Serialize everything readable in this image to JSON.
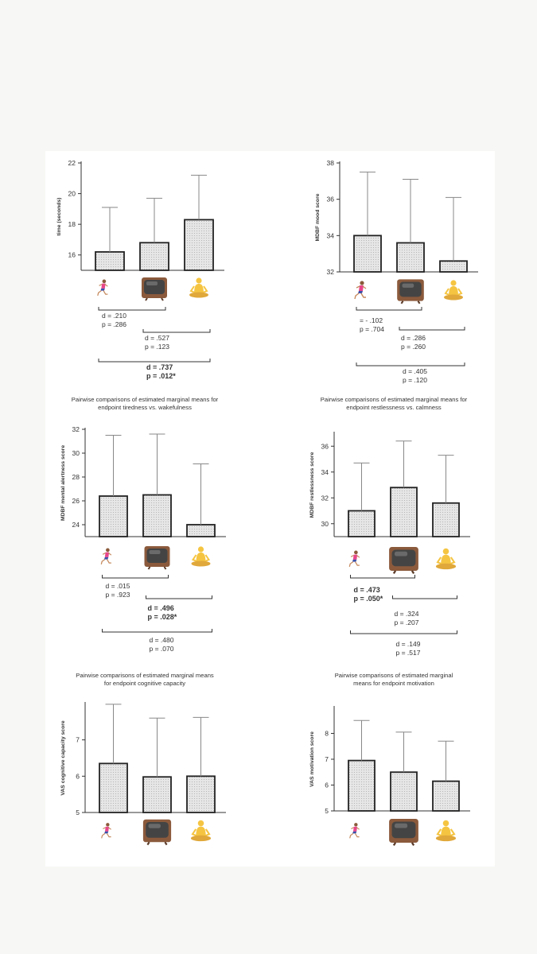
{
  "colors": {
    "page_background": "#f7f7f5",
    "panel_background": "#ffffff",
    "bar_fill": "#e6e6e6",
    "axis": "#333333",
    "error_bar": "#888888",
    "runner_shirt": "#e8458b",
    "runner_shorts": "#3b4fa8",
    "tv_body": "#8b5a3c",
    "tv_screen": "#444444",
    "yoga_body": "#f5c542"
  },
  "icons": [
    "running-person-icon",
    "television-icon",
    "person-in-lotus-position-icon"
  ],
  "chart_data": [
    {
      "id": "time",
      "type": "bar",
      "title": "",
      "ylabel": "time (seconds)",
      "ylim": [
        15,
        22
      ],
      "yticks": [
        16,
        18,
        20,
        22
      ],
      "categories": [
        "running-person-icon",
        "television-icon",
        "person-in-lotus-position-icon"
      ],
      "values": [
        16.2,
        16.8,
        18.3
      ],
      "error_upper": [
        19.1,
        19.7,
        21.2
      ],
      "comparisons": [
        {
          "from": 0,
          "to": 1,
          "d": "d = .210",
          "p": "p = .286",
          "bold": false
        },
        {
          "from": 1,
          "to": 2,
          "d": "d = .527",
          "p": "p = .123",
          "bold": false
        },
        {
          "from": 0,
          "to": 2,
          "d": "d = .737",
          "p": "p = .012*",
          "bold": true
        }
      ]
    },
    {
      "id": "mood",
      "type": "bar",
      "title": "",
      "ylabel": "MDBF mood score",
      "ylim": [
        32,
        38
      ],
      "yticks": [
        32,
        34,
        36,
        38
      ],
      "categories": [
        "running-person-icon",
        "television-icon",
        "person-in-lotus-position-icon"
      ],
      "values": [
        34.0,
        33.6,
        32.6
      ],
      "error_upper": [
        37.5,
        37.1,
        36.1
      ],
      "comparisons": [
        {
          "from": 0,
          "to": 1,
          "d": "= - .102",
          "p": "p = .704",
          "bold": false
        },
        {
          "from": 1,
          "to": 2,
          "d": "d = .286",
          "p": "p = .260",
          "bold": false
        },
        {
          "from": 0,
          "to": 2,
          "d": "d = .405",
          "p": "p = .120",
          "bold": false
        }
      ]
    },
    {
      "id": "alertness",
      "type": "bar",
      "title": "Pairwise comparisons of estimated marginal means for endpoint tiredness vs. wakefulness",
      "ylabel": "MDBF mental alertness score",
      "ylim": [
        23,
        32
      ],
      "yticks": [
        24,
        26,
        28,
        30,
        32
      ],
      "categories": [
        "running-person-icon",
        "television-icon",
        "person-in-lotus-position-icon"
      ],
      "values": [
        26.4,
        26.5,
        24.0
      ],
      "error_upper": [
        31.5,
        31.6,
        29.1
      ],
      "comparisons": [
        {
          "from": 0,
          "to": 1,
          "d": "d = .015",
          "p": "p = .923",
          "bold": false
        },
        {
          "from": 1,
          "to": 2,
          "d": "d = .496",
          "p": "p = .028*",
          "bold": true
        },
        {
          "from": 0,
          "to": 2,
          "d": "d = .480",
          "p": "p = .070",
          "bold": false
        }
      ]
    },
    {
      "id": "restlessness",
      "type": "bar",
      "title": "Pairwise comparisons of estimated marginal means for endpoint restlessness vs. calmness",
      "ylabel": "MDBF restlessness score",
      "ylim": [
        29,
        37
      ],
      "yticks": [
        30,
        32,
        34,
        36
      ],
      "categories": [
        "running-person-icon",
        "television-icon",
        "person-in-lotus-position-icon"
      ],
      "values": [
        31.0,
        32.8,
        31.6
      ],
      "error_upper": [
        34.7,
        36.4,
        35.3
      ],
      "comparisons": [
        {
          "from": 0,
          "to": 1,
          "d": "d = .473",
          "p": "p = .050*",
          "bold": true
        },
        {
          "from": 1,
          "to": 2,
          "d": "d = .324",
          "p": "p = .207",
          "bold": false
        },
        {
          "from": 0,
          "to": 2,
          "d": "d = .149",
          "p": "p = .517",
          "bold": false
        }
      ]
    },
    {
      "id": "cognitive",
      "type": "bar",
      "title": "Pairwise comparisons of estimated marginal means for endpoint cognitive capacity",
      "ylabel": "VAS cognitive capacity score",
      "ylim": [
        5,
        8
      ],
      "yticks": [
        5,
        6,
        7
      ],
      "categories": [
        "running-person-icon",
        "television-icon",
        "person-in-lotus-position-icon"
      ],
      "values": [
        6.35,
        5.98,
        6.0
      ],
      "error_upper": [
        7.98,
        7.6,
        7.62
      ],
      "comparisons": []
    },
    {
      "id": "motivation",
      "type": "bar",
      "title": "Pairwise comparisons of estimated marginal means for endpoint motivation",
      "ylabel": "VAS motivation score",
      "ylim": [
        5,
        9
      ],
      "yticks": [
        5,
        6,
        7,
        8
      ],
      "categories": [
        "running-person-icon",
        "television-icon",
        "person-in-lotus-position-icon"
      ],
      "values": [
        6.95,
        6.5,
        6.15
      ],
      "error_upper": [
        8.5,
        8.05,
        7.7
      ],
      "comparisons": []
    }
  ]
}
